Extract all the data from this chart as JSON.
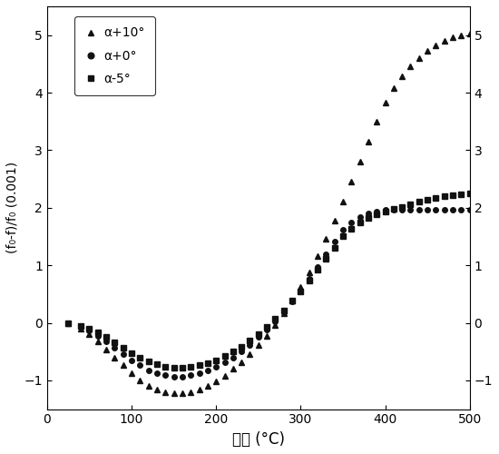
{
  "title": "",
  "xlabel": "温度 (°C)",
  "ylabel": "(f₀-f)/f₀ (0.001)",
  "xlim": [
    0,
    500
  ],
  "ylim": [
    -1.5,
    5.5
  ],
  "yticks": [
    -1,
    0,
    1,
    2,
    3,
    4,
    5
  ],
  "xticks": [
    0,
    100,
    200,
    300,
    400,
    500
  ],
  "legend_labels": [
    "α+10°",
    "α+0°",
    "α-5°"
  ],
  "marker_color": "#111111",
  "figsize": [
    5.5,
    5.0
  ],
  "dpi": 100,
  "series": {
    "alpha_plus10": {
      "T": [
        25,
        40,
        50,
        60,
        70,
        80,
        90,
        100,
        110,
        120,
        130,
        140,
        150,
        160,
        170,
        180,
        190,
        200,
        210,
        220,
        230,
        240,
        250,
        260,
        270,
        280,
        290,
        300,
        310,
        320,
        330,
        340,
        350,
        360,
        370,
        380,
        390,
        400,
        410,
        420,
        430,
        440,
        450,
        460,
        470,
        480,
        490,
        500
      ],
      "y": [
        0.0,
        -0.1,
        -0.2,
        -0.32,
        -0.46,
        -0.6,
        -0.74,
        -0.88,
        -1.0,
        -1.1,
        -1.16,
        -1.2,
        -1.22,
        -1.22,
        -1.2,
        -1.16,
        -1.1,
        -1.02,
        -0.92,
        -0.8,
        -0.68,
        -0.54,
        -0.38,
        -0.22,
        -0.04,
        0.16,
        0.38,
        0.62,
        0.88,
        1.16,
        1.46,
        1.78,
        2.1,
        2.45,
        2.8,
        3.15,
        3.5,
        3.82,
        4.08,
        4.28,
        4.45,
        4.6,
        4.72,
        4.82,
        4.9,
        4.96,
        5.0,
        5.02
      ]
    },
    "alpha_0": {
      "T": [
        25,
        40,
        50,
        60,
        70,
        80,
        90,
        100,
        110,
        120,
        130,
        140,
        150,
        160,
        170,
        180,
        190,
        200,
        210,
        220,
        230,
        240,
        250,
        260,
        270,
        280,
        290,
        300,
        310,
        320,
        330,
        340,
        350,
        360,
        370,
        380,
        390,
        400,
        410,
        420,
        430,
        440,
        450,
        460,
        470,
        480,
        490,
        500
      ],
      "y": [
        0.0,
        -0.06,
        -0.13,
        -0.22,
        -0.32,
        -0.43,
        -0.54,
        -0.65,
        -0.74,
        -0.82,
        -0.87,
        -0.91,
        -0.93,
        -0.93,
        -0.91,
        -0.88,
        -0.83,
        -0.77,
        -0.69,
        -0.6,
        -0.5,
        -0.38,
        -0.25,
        -0.12,
        0.03,
        0.19,
        0.37,
        0.56,
        0.76,
        0.97,
        1.19,
        1.42,
        1.62,
        1.75,
        1.84,
        1.9,
        1.94,
        1.96,
        1.97,
        1.97,
        1.97,
        1.97,
        1.97,
        1.97,
        1.97,
        1.97,
        1.97,
        1.97
      ]
    },
    "alpha_minus5": {
      "T": [
        25,
        40,
        50,
        60,
        70,
        80,
        90,
        100,
        110,
        120,
        130,
        140,
        150,
        160,
        170,
        180,
        190,
        200,
        210,
        220,
        230,
        240,
        250,
        260,
        270,
        280,
        290,
        300,
        310,
        320,
        330,
        340,
        350,
        360,
        370,
        380,
        390,
        400,
        410,
        420,
        430,
        440,
        450,
        460,
        470,
        480,
        490,
        500
      ],
      "y": [
        0.0,
        -0.05,
        -0.1,
        -0.17,
        -0.25,
        -0.34,
        -0.43,
        -0.52,
        -0.6,
        -0.67,
        -0.72,
        -0.76,
        -0.78,
        -0.78,
        -0.77,
        -0.74,
        -0.7,
        -0.65,
        -0.58,
        -0.5,
        -0.41,
        -0.31,
        -0.19,
        -0.07,
        0.07,
        0.22,
        0.38,
        0.55,
        0.73,
        0.92,
        1.11,
        1.31,
        1.5,
        1.64,
        1.74,
        1.82,
        1.88,
        1.94,
        1.98,
        2.02,
        2.06,
        2.1,
        2.14,
        2.17,
        2.2,
        2.22,
        2.24,
        2.25
      ]
    }
  }
}
